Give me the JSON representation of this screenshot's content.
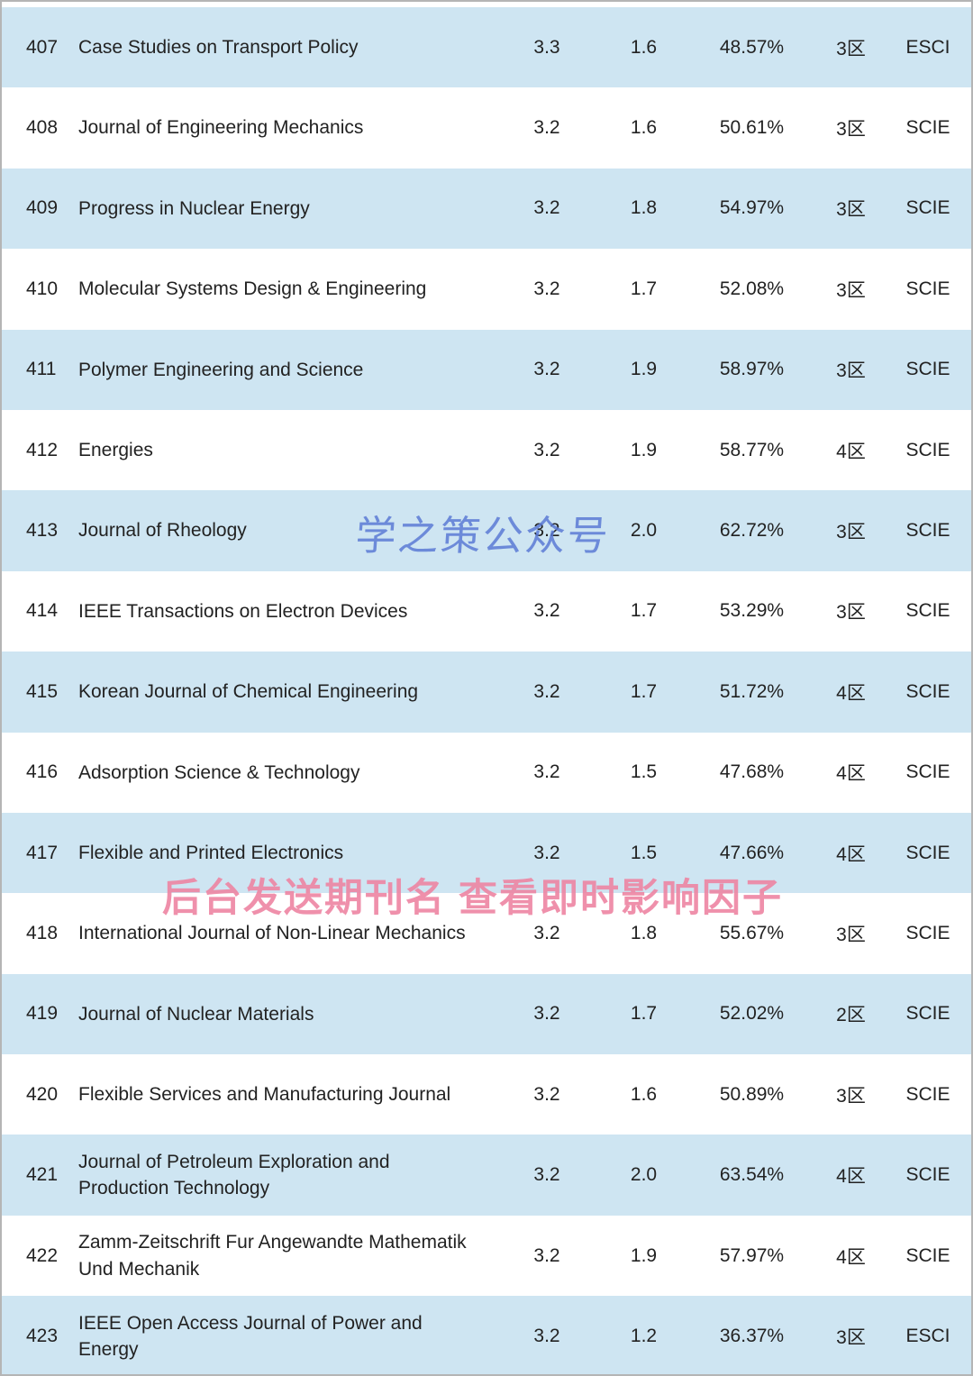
{
  "table": {
    "rows": [
      {
        "rank": "407",
        "name": "Case Studies on Transport Policy",
        "metric1": "3.3",
        "metric2": "1.6",
        "percent": "48.57%",
        "zone": "3区",
        "index": "ESCI"
      },
      {
        "rank": "408",
        "name": "Journal of Engineering Mechanics",
        "metric1": "3.2",
        "metric2": "1.6",
        "percent": "50.61%",
        "zone": "3区",
        "index": "SCIE"
      },
      {
        "rank": "409",
        "name": "Progress in Nuclear Energy",
        "metric1": "3.2",
        "metric2": "1.8",
        "percent": "54.97%",
        "zone": "3区",
        "index": "SCIE"
      },
      {
        "rank": "410",
        "name": "Molecular Systems Design & Engineering",
        "metric1": "3.2",
        "metric2": "1.7",
        "percent": "52.08%",
        "zone": "3区",
        "index": "SCIE"
      },
      {
        "rank": "411",
        "name": "Polymer Engineering and Science",
        "metric1": "3.2",
        "metric2": "1.9",
        "percent": "58.97%",
        "zone": "3区",
        "index": "SCIE"
      },
      {
        "rank": "412",
        "name": "Energies",
        "metric1": "3.2",
        "metric2": "1.9",
        "percent": "58.77%",
        "zone": "4区",
        "index": "SCIE"
      },
      {
        "rank": "413",
        "name": "Journal of Rheology",
        "metric1": "3.2",
        "metric2": "2.0",
        "percent": "62.72%",
        "zone": "3区",
        "index": "SCIE"
      },
      {
        "rank": "414",
        "name": "IEEE Transactions on Electron Devices",
        "metric1": "3.2",
        "metric2": "1.7",
        "percent": "53.29%",
        "zone": "3区",
        "index": "SCIE"
      },
      {
        "rank": "415",
        "name": "Korean Journal of Chemical Engineering",
        "metric1": "3.2",
        "metric2": "1.7",
        "percent": "51.72%",
        "zone": "4区",
        "index": "SCIE"
      },
      {
        "rank": "416",
        "name": "Adsorption Science & Technology",
        "metric1": "3.2",
        "metric2": "1.5",
        "percent": "47.68%",
        "zone": "4区",
        "index": "SCIE"
      },
      {
        "rank": "417",
        "name": "Flexible and Printed Electronics",
        "metric1": "3.2",
        "metric2": "1.5",
        "percent": "47.66%",
        "zone": "4区",
        "index": "SCIE"
      },
      {
        "rank": "418",
        "name": "International Journal of Non-Linear Mechanics",
        "metric1": "3.2",
        "metric2": "1.8",
        "percent": "55.67%",
        "zone": "3区",
        "index": "SCIE"
      },
      {
        "rank": "419",
        "name": "Journal of Nuclear Materials",
        "metric1": "3.2",
        "metric2": "1.7",
        "percent": "52.02%",
        "zone": "2区",
        "index": "SCIE"
      },
      {
        "rank": "420",
        "name": "Flexible Services and Manufacturing Journal",
        "metric1": "3.2",
        "metric2": "1.6",
        "percent": "50.89%",
        "zone": "3区",
        "index": "SCIE"
      },
      {
        "rank": "421",
        "name": "Journal of Petroleum Exploration and Production Technology",
        "metric1": "3.2",
        "metric2": "2.0",
        "percent": "63.54%",
        "zone": "4区",
        "index": "SCIE"
      },
      {
        "rank": "422",
        "name": "Zamm-Zeitschrift Fur Angewandte Mathematik Und Mechanik",
        "metric1": "3.2",
        "metric2": "1.9",
        "percent": "57.97%",
        "zone": "4区",
        "index": "SCIE"
      },
      {
        "rank": "423",
        "name": "IEEE Open Access Journal of Power and Energy",
        "metric1": "3.2",
        "metric2": "1.2",
        "percent": "36.37%",
        "zone": "3区",
        "index": "ESCI"
      }
    ]
  },
  "watermarks": {
    "brand": "学之策公众号",
    "promo": "后台发送期刊名 查看即时影响因子"
  },
  "colors": {
    "row_alt": "#cee5f2",
    "row_base": "#ffffff",
    "text": "#222222",
    "watermark_blue": "#5b7bd5",
    "watermark_pink": "#ee85a3"
  }
}
